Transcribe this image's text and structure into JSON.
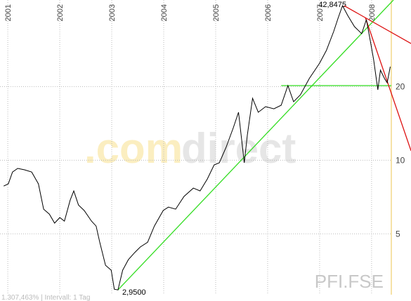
{
  "chart_data": {
    "type": "line",
    "color": "#000000",
    "log_y": true,
    "grid": true,
    "xlim": [
      2000.85,
      2008.38
    ],
    "ylim": [
      2.82,
      45.2
    ],
    "xticks": [
      2001,
      2002,
      2003,
      2004,
      2005,
      2006,
      2007,
      2008
    ],
    "yticks": [
      5,
      10,
      20
    ],
    "x": [
      2000.92,
      2001.01,
      2001.09,
      2001.19,
      2001.32,
      2001.46,
      2001.59,
      2001.69,
      2001.8,
      2001.9,
      2002.0,
      2002.09,
      2002.2,
      2002.27,
      2002.36,
      2002.47,
      2002.61,
      2002.7,
      2002.77,
      2002.88,
      2002.99,
      2003.05,
      2003.12,
      2003.21,
      2003.32,
      2003.44,
      2003.55,
      2003.69,
      2003.82,
      2003.99,
      2004.09,
      2004.23,
      2004.39,
      2004.57,
      2004.7,
      2004.84,
      2004.97,
      2005.07,
      2005.2,
      2005.34,
      2005.44,
      2005.55,
      2005.61,
      2005.71,
      2005.82,
      2005.96,
      2006.12,
      2006.26,
      2006.39,
      2006.5,
      2006.63,
      2006.8,
      2007.0,
      2007.13,
      2007.27,
      2007.36,
      2007.44,
      2007.54,
      2007.67,
      2007.81,
      2007.9,
      2007.98,
      2008.04,
      2008.12,
      2008.17,
      2008.25,
      2008.3,
      2008.36
    ],
    "values": [
      7.84,
      8.0,
      8.95,
      9.26,
      9.14,
      8.95,
      8.0,
      6.31,
      6.02,
      5.53,
      5.83,
      5.64,
      6.87,
      7.49,
      6.56,
      6.23,
      5.64,
      5.38,
      4.62,
      3.72,
      3.55,
      2.97,
      2.95,
      3.55,
      3.92,
      4.19,
      4.42,
      4.62,
      5.38,
      6.23,
      6.43,
      6.31,
      7.11,
      7.69,
      7.49,
      8.38,
      9.57,
      9.76,
      11.29,
      13.58,
      15.71,
      9.76,
      12.71,
      17.92,
      15.71,
      16.56,
      16.23,
      16.78,
      20.19,
      17.34,
      18.52,
      21.56,
      24.95,
      28.1,
      33.57,
      38.32,
      42.8475,
      39.09,
      35.19,
      32.92,
      37.58,
      30.41,
      25.79,
      19.41,
      23.35,
      21.56,
      20.74,
      24.14
    ],
    "trendlines": [
      {
        "color": "#33dd22",
        "x": [
          2003.12,
          2008.42
        ],
        "values": [
          2.95,
          45.2
        ]
      },
      {
        "color": "#33dd22",
        "x": [
          2006.26,
          2008.38
        ],
        "values": [
          20.19,
          20.19
        ]
      },
      {
        "color": "#dd1111",
        "x": [
          2007.47,
          2008.76
        ],
        "values": [
          42.8475,
          30.02
        ]
      },
      {
        "color": "#dd1111",
        "x": [
          2007.88,
          2008.76
        ],
        "values": [
          38.32,
          10.92
        ]
      }
    ],
    "annotations": [
      "42,8475",
      "2,9500"
    ],
    "watermark": [
      ".com",
      "direct"
    ],
    "symbol": "PFI.FSE",
    "footer": "1.307,463% | Intervall: 1 Tag"
  }
}
